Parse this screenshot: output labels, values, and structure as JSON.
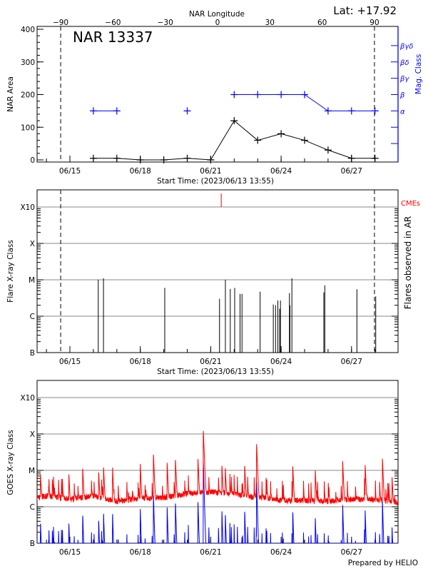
{
  "chart_data": [
    {
      "type": "line",
      "title": "NAR 13337",
      "corner_label": "Lat: +17.92",
      "top_axis_label": "NAR Longitude",
      "top_axis_ticks": [
        "-90",
        "-60",
        "-30",
        "0",
        "30",
        "60",
        "90"
      ],
      "xlabel": "Start Time: (2023/06/13 13:55)",
      "x_tick_labels": [
        "06/15",
        "06/18",
        "06/21",
        "06/24",
        "06/27"
      ],
      "ylabel": "NAR Area",
      "y_tick_labels": [
        "0",
        "100",
        "200",
        "300",
        "400"
      ],
      "ylim": [
        -7,
        410
      ],
      "y2label": "Mag. Class",
      "y2_tick_labels": [
        "α",
        "β",
        "βγ",
        "βδ",
        "βγδ"
      ],
      "limb_longitudes": [
        -90,
        90
      ],
      "series": [
        {
          "name": "NAR Area",
          "color": "#000000",
          "x": [
            "06/16 00:00",
            "06/17 00:00",
            "06/18 00:00",
            "06/19 00:00",
            "06/20 00:00",
            "06/21 00:00",
            "06/22 00:00",
            "06/23 00:00",
            "06/24 00:00",
            "06/25 00:00",
            "06/26 00:00",
            "06/27 00:00",
            "06/28 00:00"
          ],
          "values": [
            5,
            5,
            0,
            0,
            5,
            0,
            120,
            60,
            80,
            60,
            30,
            5,
            5
          ]
        },
        {
          "name": "Mag. Class",
          "color": "#0000ff",
          "x": [
            "06/16 00:00",
            "06/17 00:00",
            "06/20 00:00",
            "06/22 00:00",
            "06/23 00:00",
            "06/24 00:00",
            "06/25 00:00",
            "06/26 00:00",
            "06/27 00:00",
            "06/28 00:00"
          ],
          "values": [
            "α",
            "α",
            "α",
            "β",
            "β",
            "β",
            "β",
            "α",
            "α",
            "α"
          ]
        }
      ]
    },
    {
      "type": "bar",
      "xlabel": "Start Time: (2023/06/13 13:55)",
      "x_tick_labels": [
        "06/15",
        "06/18",
        "06/21",
        "06/24",
        "06/27"
      ],
      "ylabel": "Flare X-ray Class",
      "y_tick_labels": [
        "B",
        "C",
        "M",
        "X",
        "X10"
      ],
      "y_scale": "log",
      "y2label": "Flares observed in AR",
      "cme_label": "CMEs",
      "cme_color": "#ff0000",
      "cmes": [
        "06/21 10:45"
      ],
      "flares": [
        {
          "time": "06/16 05:00",
          "class": "M1.0"
        },
        {
          "time": "06/16 10:20",
          "class": "M1.1"
        },
        {
          "time": "06/19 01:00",
          "class": "C6.0"
        },
        {
          "time": "06/21 09:00",
          "class": "C3.0"
        },
        {
          "time": "06/21 15:00",
          "class": "M1.0"
        },
        {
          "time": "06/21 20:00",
          "class": "C5.6"
        },
        {
          "time": "06/22 00:30",
          "class": "C6.0"
        },
        {
          "time": "06/22 06:00",
          "class": "C4.1"
        },
        {
          "time": "06/22 08:00",
          "class": "C4.1"
        },
        {
          "time": "06/23 02:30",
          "class": "C4.7"
        },
        {
          "time": "06/23 16:00",
          "class": "C2.1"
        },
        {
          "time": "06/23 18:20",
          "class": "C2.0"
        },
        {
          "time": "06/23 20:40",
          "class": "C2.7"
        },
        {
          "time": "06/23 22:30",
          "class": "C1.6"
        },
        {
          "time": "06/23 23:20",
          "class": "C2.7"
        },
        {
          "time": "06/24 08:30",
          "class": "C4.3"
        },
        {
          "time": "06/24 09:00",
          "class": "C2.0"
        },
        {
          "time": "06/24 11:00",
          "class": "M1.1"
        },
        {
          "time": "06/25 19:40",
          "class": "C4.5"
        },
        {
          "time": "06/25 20:40",
          "class": "C7.0"
        },
        {
          "time": "06/27 05:30",
          "class": "C5.5"
        },
        {
          "time": "06/28 00:45",
          "class": "C3.5"
        }
      ]
    },
    {
      "type": "line",
      "xlabel": "",
      "x_tick_labels": [
        "06/15",
        "06/18",
        "06/21",
        "06/24",
        "06/27"
      ],
      "ylabel": "GOES X-ray Class",
      "y_tick_labels": [
        "B",
        "C",
        "M",
        "X",
        "X10"
      ],
      "y_scale": "log",
      "footer": "Prepared by HELIO",
      "series": [
        {
          "channel": "long",
          "color": "#ff0000",
          "daily_background": {
            "days": [
              "06/13",
              "06/14",
              "06/15",
              "06/16",
              "06/17",
              "06/18",
              "06/19",
              "06/20",
              "06/21",
              "06/22",
              "06/23",
              "06/24",
              "06/25",
              "06/26",
              "06/27",
              "06/28",
              "06/29"
            ],
            "class": [
              "C1.4",
              "C2.0",
              "C1.6",
              "C2.0",
              "C1.4",
              "C1.7",
              "C1.8",
              "C2.3",
              "C2.6",
              "C2.2",
              "C1.8",
              "C1.5",
              "C1.5",
              "C1.4",
              "C1.6",
              "C1.6",
              "C1.3"
            ]
          },
          "peaks": [
            {
              "time": "06/13 18:00",
              "class": "C6.6"
            },
            {
              "time": "06/14 23:00",
              "class": "C6.8"
            },
            {
              "time": "06/15 13:10",
              "class": "M1.0"
            },
            {
              "time": "06/16 05:30",
              "class": "C7.7"
            },
            {
              "time": "06/16 10:30",
              "class": "M1.1"
            },
            {
              "time": "06/16 19:40",
              "class": "M1.1"
            },
            {
              "time": "06/18 00:00",
              "class": "M1.4"
            },
            {
              "time": "06/18 13:30",
              "class": "M2.6"
            },
            {
              "time": "06/19 03:30",
              "class": "M1.5"
            },
            {
              "time": "06/19 12:00",
              "class": "M1.8"
            },
            {
              "time": "06/20 11:00",
              "class": "M1.9"
            },
            {
              "time": "06/20 16:30",
              "class": "X1.2"
            },
            {
              "time": "06/21 11:30",
              "class": "M1.2"
            },
            {
              "time": "06/21 15:00",
              "class": "M1.0"
            },
            {
              "time": "06/22 10:50",
              "class": "M1.2"
            },
            {
              "time": "06/22 23:00",
              "class": "M5.1"
            },
            {
              "time": "06/24 12:00",
              "class": "M1.2"
            },
            {
              "time": "06/25 11:00",
              "class": "C9.0"
            },
            {
              "time": "06/26 15:00",
              "class": "M1.7"
            },
            {
              "time": "06/27 14:00",
              "class": "M1.3"
            },
            {
              "time": "06/28 07:40",
              "class": "M2.0"
            },
            {
              "time": "06/28 17:30",
              "class": "C5.7"
            }
          ]
        },
        {
          "channel": "short",
          "color": "#0000ff"
        }
      ]
    }
  ]
}
